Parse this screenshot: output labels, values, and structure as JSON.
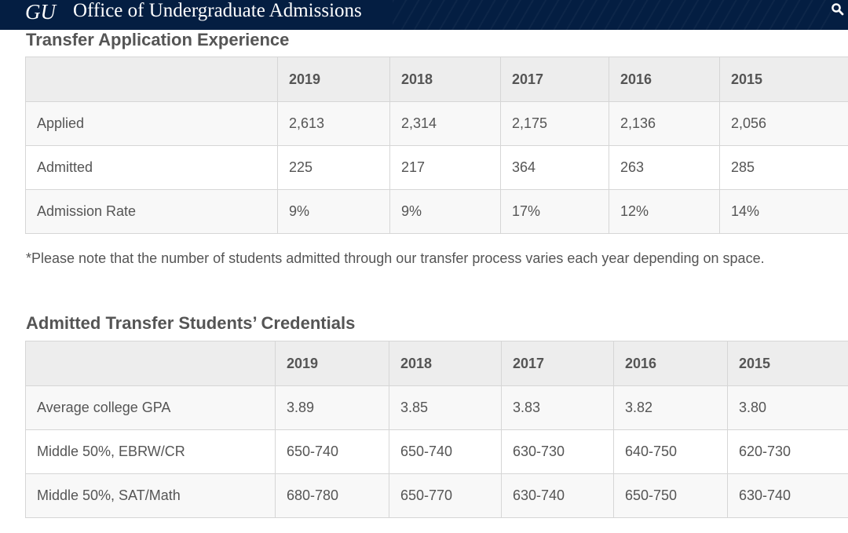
{
  "header": {
    "logo": "GU",
    "office": "Office of Undergraduate Admissions",
    "search_icon": "search-icon",
    "background": "#041e42"
  },
  "transfer_experience": {
    "title": "Transfer Application Experience",
    "columns": [
      "",
      "2019",
      "2018",
      "2017",
      "2016",
      "2015"
    ],
    "rows": [
      {
        "label": "Applied",
        "values": [
          "2,613",
          "2,314",
          "2,175",
          "2,136",
          "2,056"
        ]
      },
      {
        "label": "Admitted",
        "values": [
          "225",
          "217",
          "364",
          "263",
          "285"
        ]
      },
      {
        "label": "Admission Rate",
        "values": [
          "9%",
          "9%",
          "17%",
          "12%",
          "14%"
        ]
      }
    ],
    "note": "*Please note that the number of students admitted through our transfer process varies each year depending on space."
  },
  "credentials": {
    "title": "Admitted Transfer Students’ Credentials",
    "columns": [
      "",
      "2019",
      "2018",
      "2017",
      "2016",
      "2015"
    ],
    "rows": [
      {
        "label": "Average college GPA",
        "values": [
          "3.89",
          "3.85",
          "3.83",
          "3.82",
          "3.80"
        ]
      },
      {
        "label": "Middle 50%, EBRW/CR",
        "values": [
          "650-740",
          "650-740",
          "630-730",
          "640-750",
          "620-730"
        ]
      },
      {
        "label": "Middle 50%, SAT/Math",
        "values": [
          "680-780",
          "650-770",
          "630-740",
          "650-750",
          "630-740"
        ]
      }
    ]
  }
}
